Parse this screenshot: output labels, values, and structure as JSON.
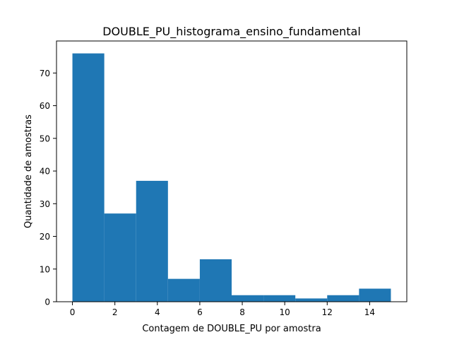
{
  "chart_data": {
    "type": "bar",
    "title": "DOUBLE_PU_histograma_ensino_fundamental",
    "xlabel": "Contagem de DOUBLE_PU por amostra",
    "ylabel": "Quantidade de amostras",
    "bin_edges": [
      0,
      1.5,
      3,
      4.5,
      6,
      7.5,
      9,
      10.5,
      12,
      13.5,
      15
    ],
    "values": [
      76,
      27,
      37,
      7,
      13,
      2,
      2,
      1,
      2,
      4
    ],
    "xlim": [
      -0.75,
      15.75
    ],
    "ylim": [
      0,
      79.8
    ],
    "xticks": [
      0,
      2,
      4,
      6,
      8,
      10,
      12,
      14
    ],
    "yticks": [
      0,
      10,
      20,
      30,
      40,
      50,
      60,
      70
    ],
    "bar_color": "#1f77b4",
    "grid": false,
    "legend": "none"
  }
}
